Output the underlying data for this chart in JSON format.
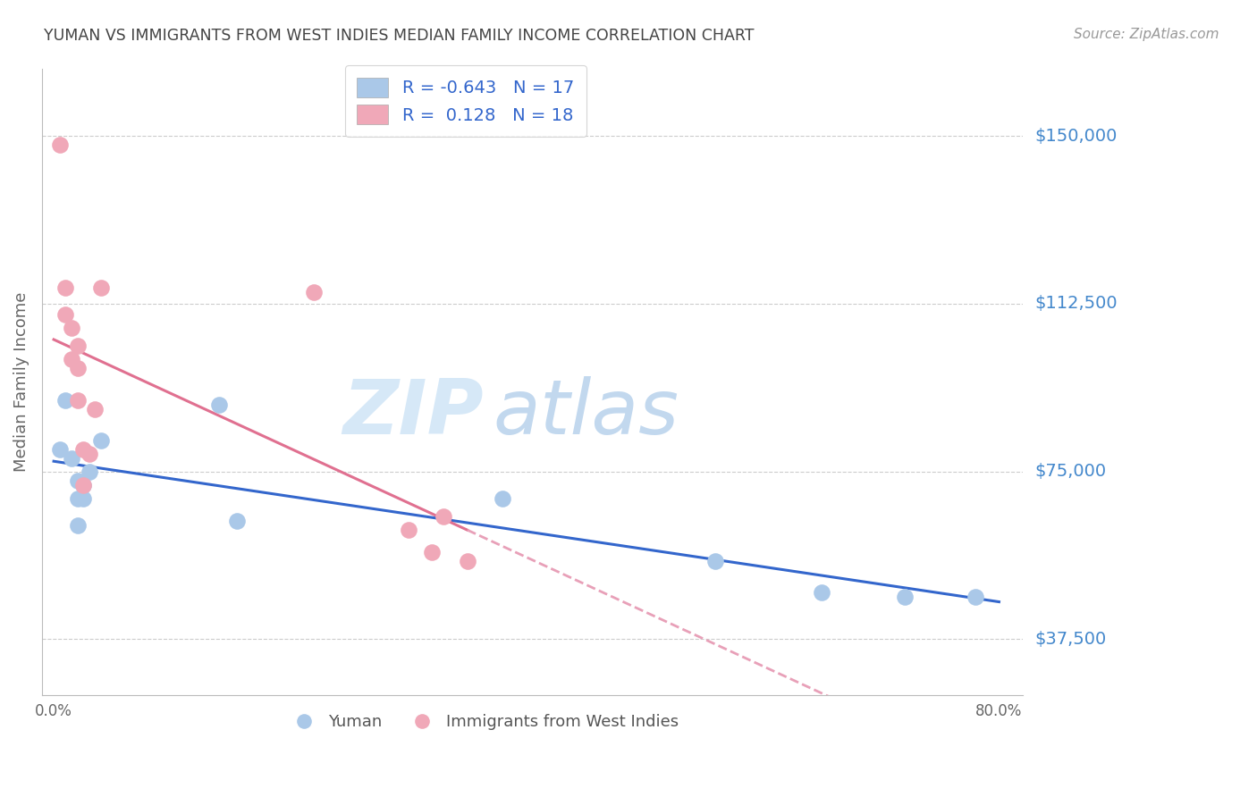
{
  "title": "YUMAN VS IMMIGRANTS FROM WEST INDIES MEDIAN FAMILY INCOME CORRELATION CHART",
  "source": "Source: ZipAtlas.com",
  "ylabel": "Median Family Income",
  "yuman_R": -0.643,
  "yuman_N": 17,
  "immigrants_R": 0.128,
  "immigrants_N": 18,
  "xlim": [
    -0.01,
    0.82
  ],
  "ylim": [
    25000,
    165000
  ],
  "yticks": [
    37500,
    75000,
    112500,
    150000
  ],
  "ytick_labels": [
    "$37,500",
    "$75,000",
    "$112,500",
    "$150,000"
  ],
  "xtick_vals": [
    0.0,
    0.1,
    0.2,
    0.3,
    0.4,
    0.5,
    0.6,
    0.7,
    0.8
  ],
  "xtick_labels": [
    "0.0%",
    "",
    "",
    "",
    "",
    "",
    "",
    "",
    "80.0%"
  ],
  "yuman_x": [
    0.005,
    0.01,
    0.015,
    0.02,
    0.02,
    0.02,
    0.025,
    0.025,
    0.03,
    0.04,
    0.14,
    0.155,
    0.38,
    0.56,
    0.65,
    0.72,
    0.78
  ],
  "yuman_y": [
    80000,
    91000,
    78000,
    73000,
    69000,
    63000,
    72000,
    69000,
    75000,
    82000,
    90000,
    64000,
    69000,
    55000,
    48000,
    47000,
    47000
  ],
  "immigrants_x": [
    0.005,
    0.01,
    0.01,
    0.015,
    0.015,
    0.02,
    0.02,
    0.02,
    0.025,
    0.025,
    0.03,
    0.035,
    0.04,
    0.22,
    0.3,
    0.32,
    0.33,
    0.35
  ],
  "immigrants_y": [
    148000,
    116000,
    110000,
    107000,
    100000,
    103000,
    98000,
    91000,
    80000,
    72000,
    79000,
    89000,
    116000,
    115000,
    62000,
    57000,
    65000,
    55000
  ],
  "blue_color": "#aac8e8",
  "pink_color": "#f0a8b8",
  "blue_line_color": "#3366cc",
  "pink_line_color": "#e07090",
  "pink_dash_color": "#e8a0b8",
  "title_color": "#444444",
  "axis_label_color": "#666666",
  "ytick_color": "#4488cc",
  "watermark_color": "#d0e8f8",
  "background_color": "#ffffff",
  "grid_color": "#cccccc"
}
